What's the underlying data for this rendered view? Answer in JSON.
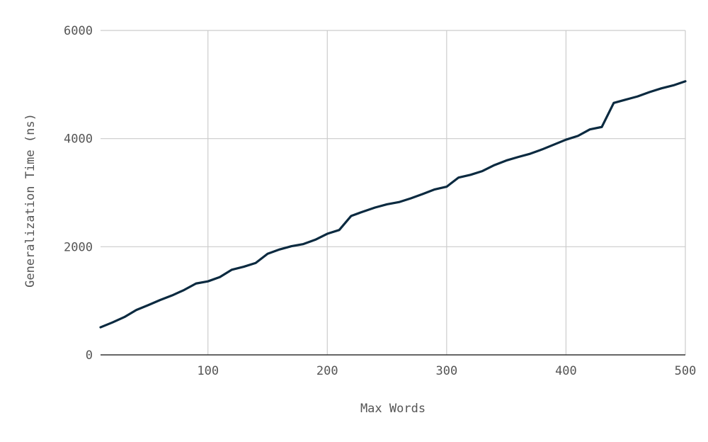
{
  "chart_data": {
    "type": "line",
    "title": "",
    "xlabel": "Max Words",
    "ylabel": "Generalization Time (ns)",
    "xlim": [
      10,
      500
    ],
    "ylim": [
      0,
      6000
    ],
    "x_ticks": [
      100,
      200,
      300,
      400,
      500
    ],
    "y_ticks": [
      0,
      2000,
      4000,
      6000
    ],
    "grid": true,
    "legend": "none",
    "colors": {
      "line": "#0b2a40",
      "grid": "#cccccc",
      "axis": "#333333"
    },
    "series": [
      {
        "x": [
          10,
          20,
          30,
          40,
          50,
          60,
          70,
          80,
          90,
          100,
          110,
          120,
          130,
          140,
          150,
          160,
          170,
          180,
          190,
          200,
          210,
          220,
          230,
          240,
          250,
          260,
          270,
          280,
          290,
          300,
          310,
          320,
          330,
          340,
          350,
          360,
          370,
          380,
          390,
          400,
          410,
          420,
          430,
          440,
          450,
          460,
          470,
          480,
          490,
          500
        ],
        "values": [
          510,
          600,
          700,
          830,
          920,
          1015,
          1100,
          1200,
          1320,
          1360,
          1440,
          1575,
          1630,
          1700,
          1870,
          1950,
          2010,
          2050,
          2130,
          2240,
          2310,
          2570,
          2650,
          2725,
          2785,
          2825,
          2895,
          2975,
          3060,
          3110,
          3280,
          3330,
          3400,
          3510,
          3595,
          3660,
          3720,
          3800,
          3890,
          3980,
          4050,
          4170,
          4215,
          4660,
          4720,
          4780,
          4860,
          4930,
          4985,
          5060
        ]
      }
    ]
  }
}
